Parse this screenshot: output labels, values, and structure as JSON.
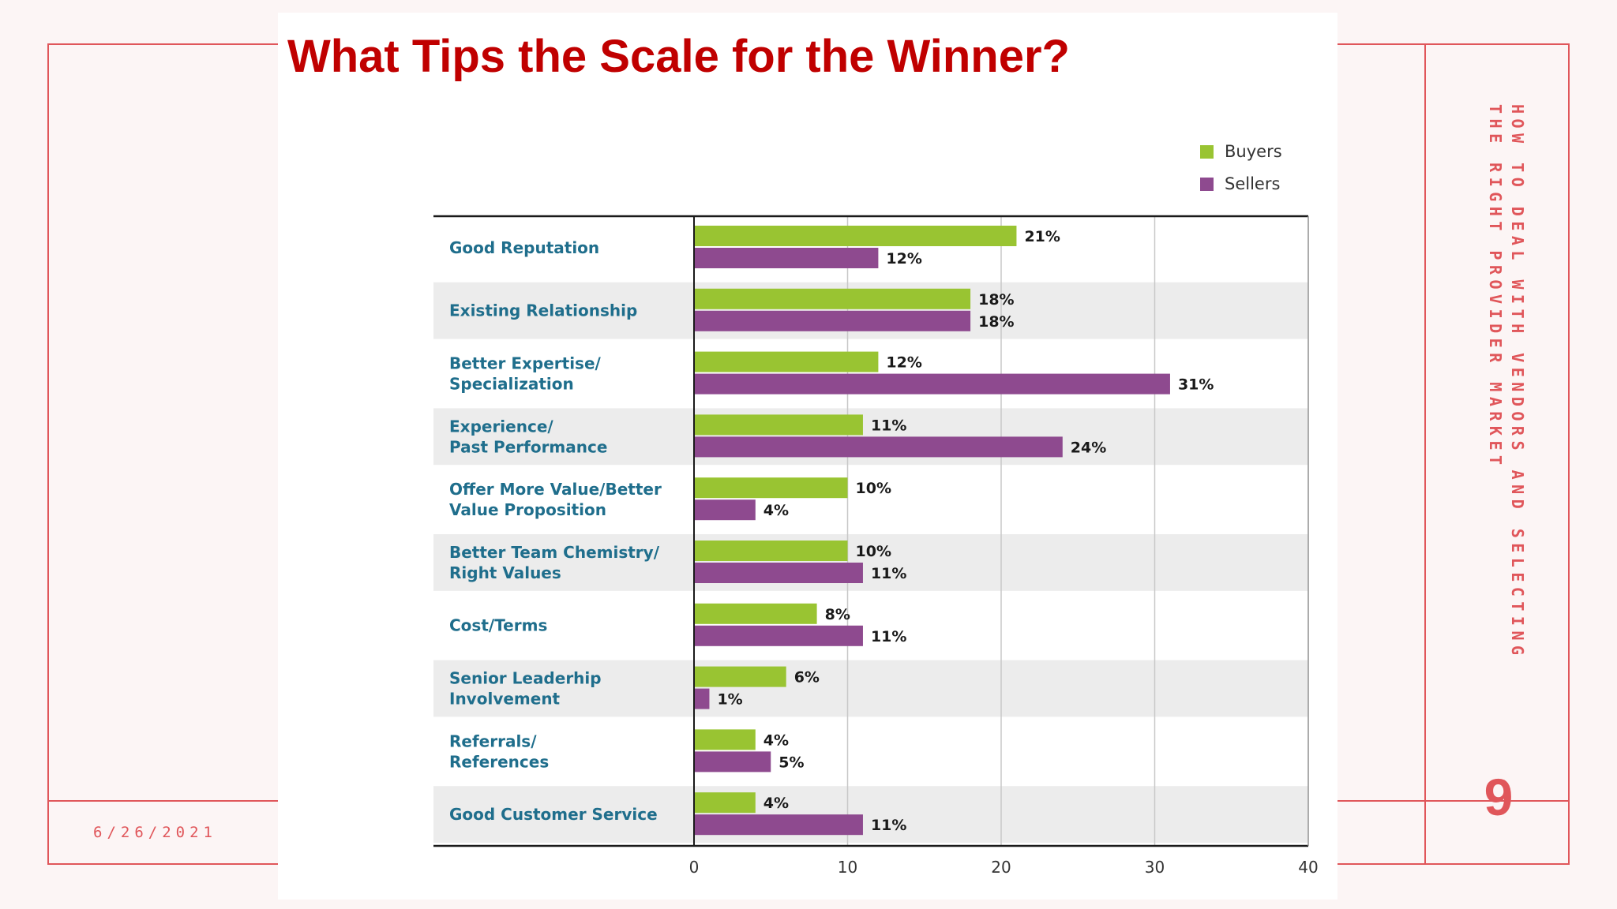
{
  "slide": {
    "title": "What Tips the Scale for the Winner?",
    "date": "6/26/2021",
    "section_title": "HOW TO DEAL WITH VENDORS AND SELECTING THE RIGHT PROVIDER MARKET",
    "page_number": "9"
  },
  "colors": {
    "accent": "#e0565a",
    "title": "#c00000",
    "buyers": "#99c432",
    "sellers": "#8e4a8f",
    "category_text": "#1f6e8c",
    "band": "#ececec"
  },
  "chart_data": {
    "type": "bar",
    "orientation": "horizontal",
    "title": "",
    "xlabel": "",
    "ylabel": "",
    "xlim": [
      0,
      40
    ],
    "xticks": [
      0,
      10,
      20,
      30,
      40
    ],
    "grid": true,
    "legend_position": "top-right",
    "categories": [
      [
        "Good Reputation"
      ],
      [
        "Existing Relationship"
      ],
      [
        "Better Expertise/",
        "Specialization"
      ],
      [
        "Experience/",
        "Past Performance"
      ],
      [
        "Offer More Value/Better",
        "Value Proposition"
      ],
      [
        "Better Team Chemistry/",
        "Right Values"
      ],
      [
        "Cost/Terms"
      ],
      [
        "Senior Leaderhip",
        "Involvement"
      ],
      [
        "Referrals/",
        "References"
      ],
      [
        "Good Customer Service"
      ]
    ],
    "series": [
      {
        "name": "Buyers",
        "color": "#99c432",
        "values": [
          21,
          18,
          12,
          11,
          10,
          10,
          8,
          6,
          4,
          4
        ],
        "labels": [
          "21%",
          "18%",
          "12%",
          "11%",
          "10%",
          "10%",
          "8%",
          "6%",
          "4%",
          "4%"
        ]
      },
      {
        "name": "Sellers",
        "color": "#8e4a8f",
        "values": [
          12,
          18,
          31,
          24,
          4,
          11,
          11,
          1,
          5,
          11
        ],
        "labels": [
          "12%",
          "18%",
          "31%",
          "24%",
          "4%",
          "11%",
          "11%",
          "1%",
          "5%",
          "11%"
        ]
      }
    ]
  }
}
